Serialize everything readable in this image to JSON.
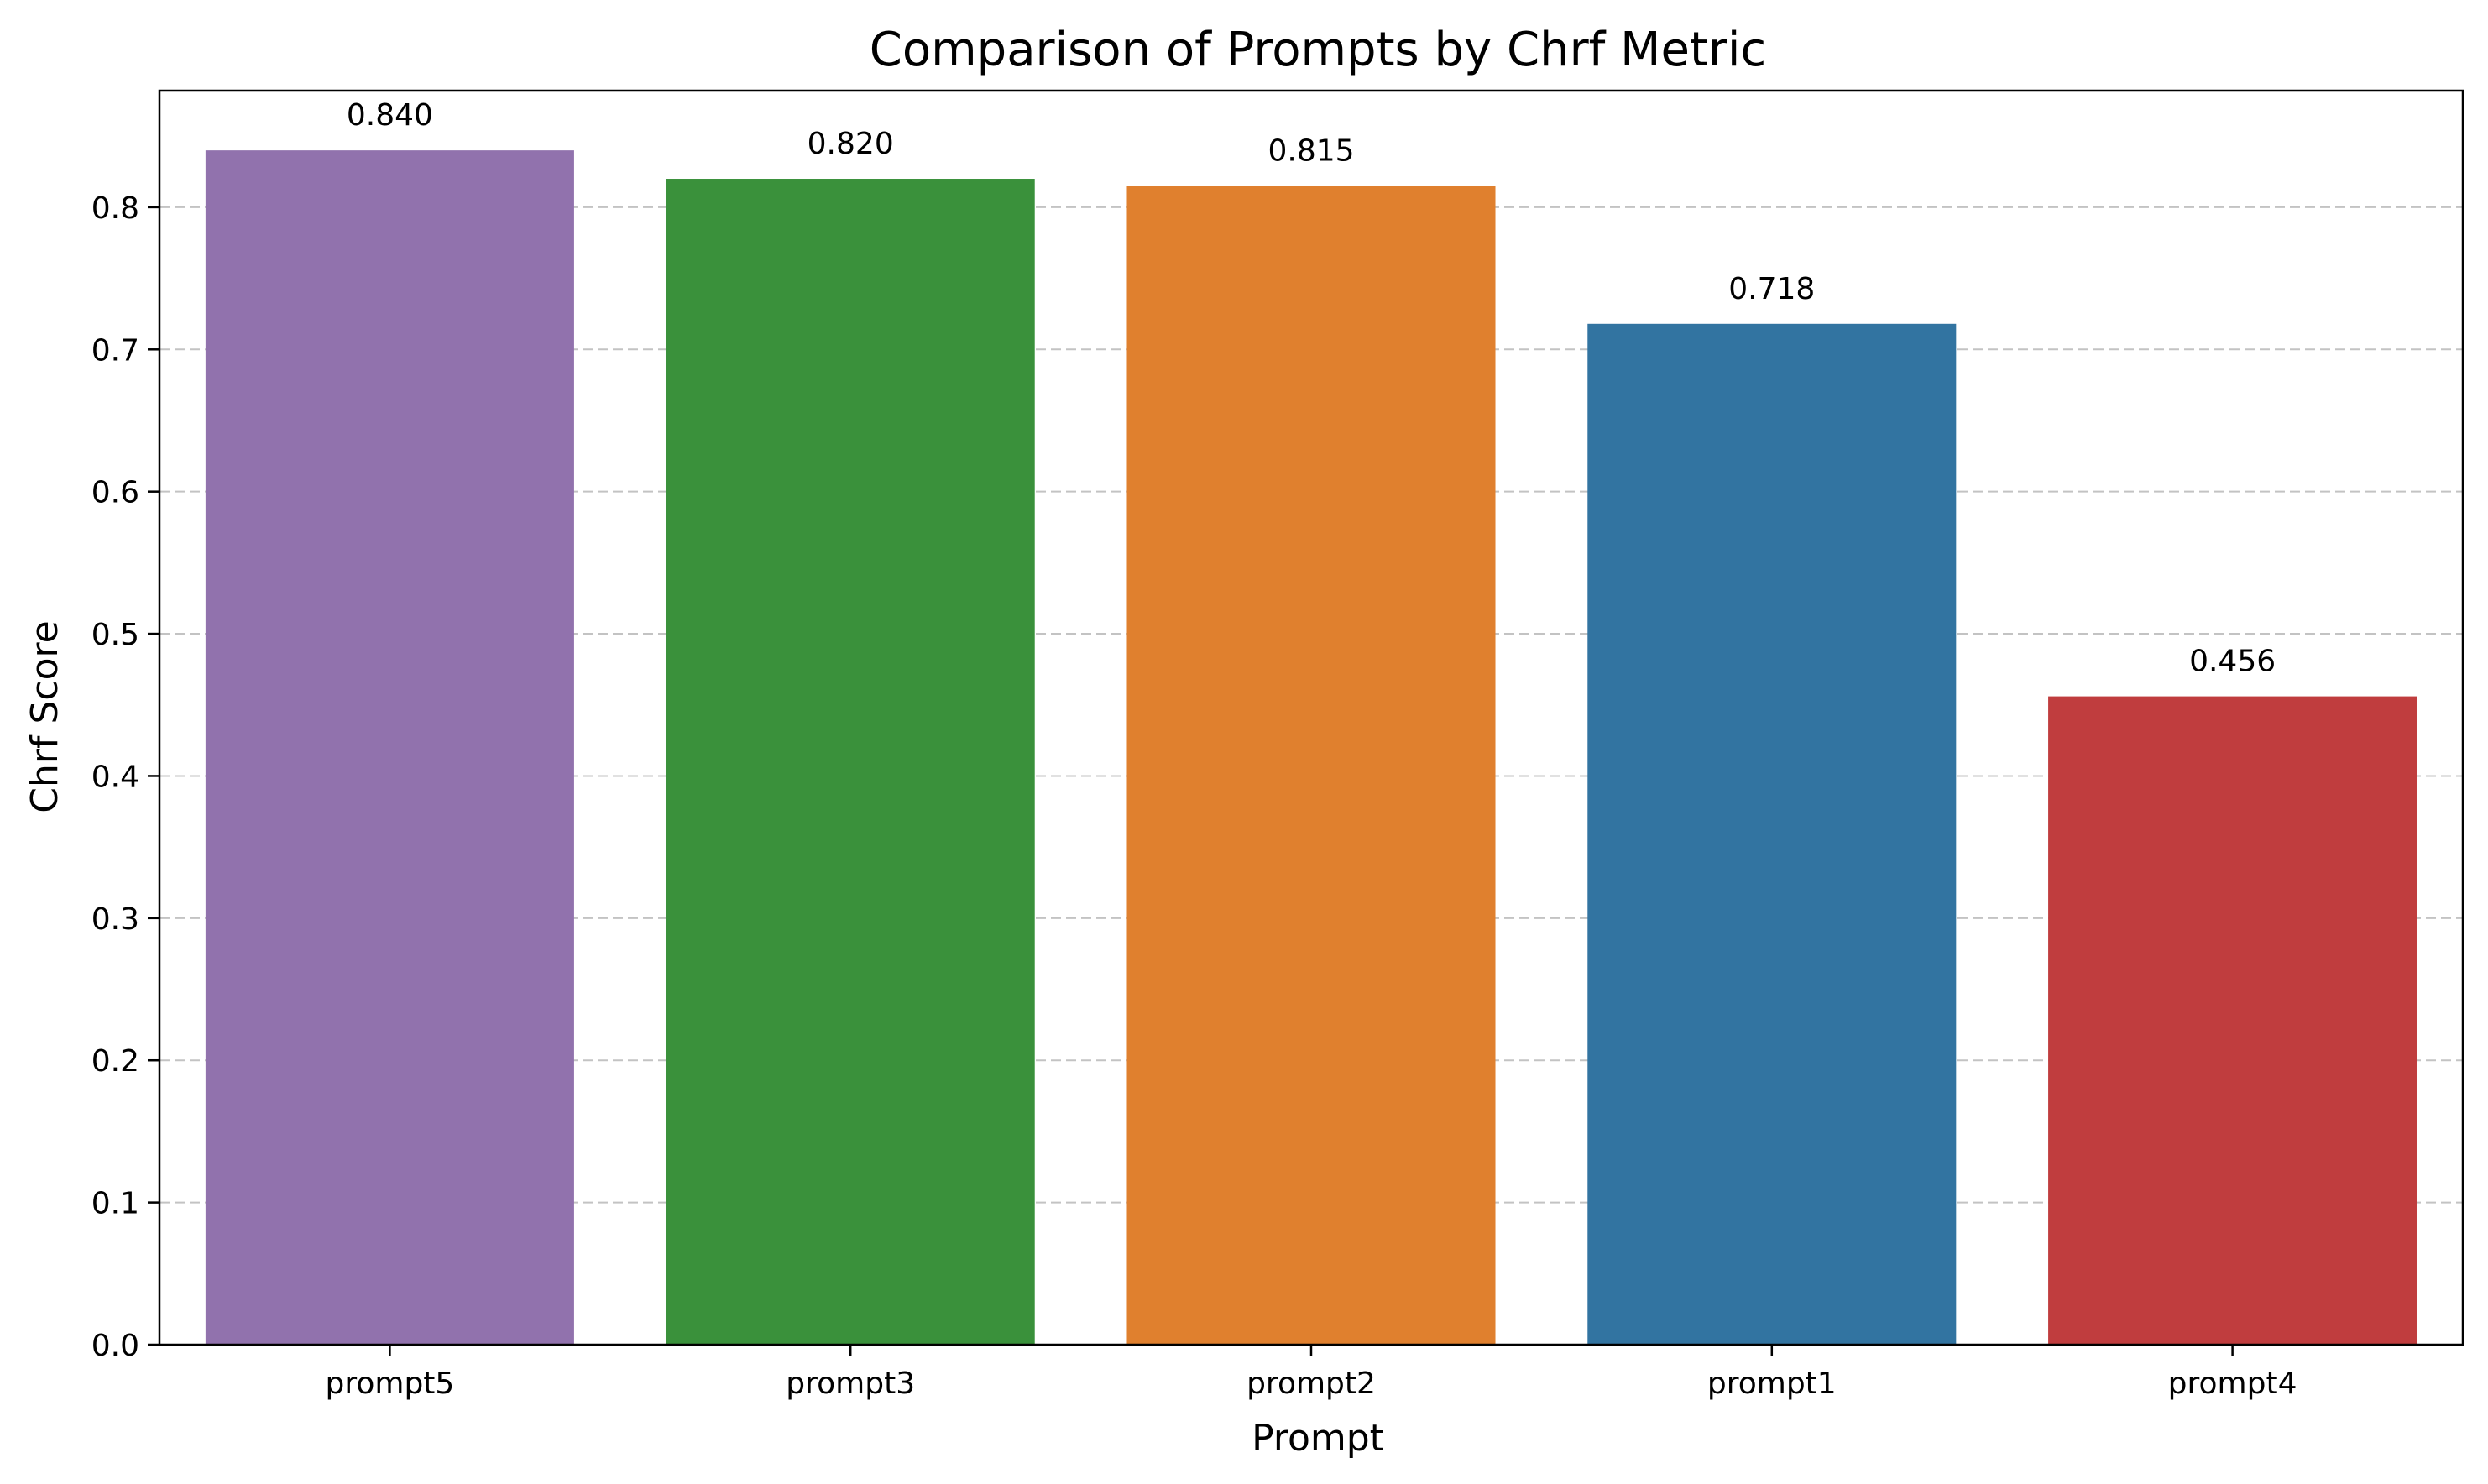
{
  "chart_data": {
    "type": "bar",
    "title": "Comparison of Prompts by Chrf Metric",
    "xlabel": "Prompt",
    "ylabel": "Chrf Score",
    "categories": [
      "prompt5",
      "prompt3",
      "prompt2",
      "prompt1",
      "prompt4"
    ],
    "values": [
      0.84,
      0.82,
      0.815,
      0.718,
      0.456
    ],
    "value_labels": [
      "0.840",
      "0.820",
      "0.815",
      "0.718",
      "0.456"
    ],
    "colors": [
      "#9172ad",
      "#3a913b",
      "#e0802e",
      "#3274a1",
      "#c03d3e"
    ],
    "ylim": [
      0,
      0.882
    ],
    "yticks": [
      0.0,
      0.1,
      0.2,
      0.3,
      0.4,
      0.5,
      0.6,
      0.7,
      0.8
    ],
    "ytick_labels": [
      "0.0",
      "0.1",
      "0.2",
      "0.3",
      "0.4",
      "0.5",
      "0.6",
      "0.7",
      "0.8"
    ],
    "grid": "y-dashed",
    "legend": "none"
  }
}
